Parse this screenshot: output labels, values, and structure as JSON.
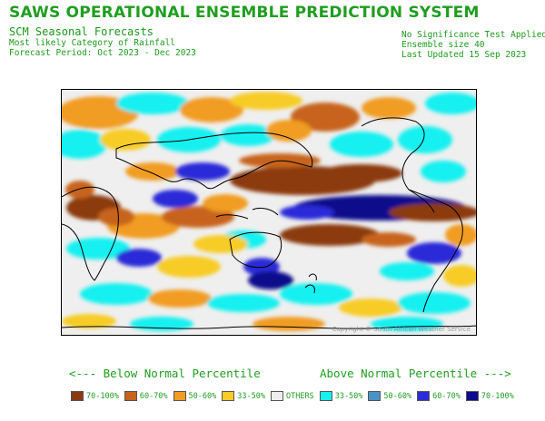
{
  "header": {
    "title": "SAWS OPERATIONAL ENSEMBLE PREDICTION SYSTEM",
    "subtitle": "SCM Seasonal Forecasts",
    "line1": "Most likely Category of Rainfall",
    "line2": "Forecast Period: Oct 2023 - Dec 2023",
    "right1": "No Significance Test Applied",
    "right2": "Ensemble size 40",
    "right3": "Last Updated 15 Sep 2023"
  },
  "map": {
    "copyright": "Copyright © South African Weather Service"
  },
  "legend": {
    "below_heading": "<--- Below Normal Percentile",
    "above_heading": "Above Normal Percentile --->",
    "items": [
      {
        "label": "70-100%",
        "color": "#8b3a0f"
      },
      {
        "label": "60-70%",
        "color": "#c7631c"
      },
      {
        "label": "50-60%",
        "color": "#f19c22"
      },
      {
        "label": "33-50%",
        "color": "#f7cc26"
      },
      {
        "label": "OTHERS",
        "color": "#eeeeee"
      },
      {
        "label": "33-50%",
        "color": "#19f0f0"
      },
      {
        "label": "50-60%",
        "color": "#4a93c7"
      },
      {
        "label": "60-70%",
        "color": "#2b2bd8"
      },
      {
        "label": "70-100%",
        "color": "#0b0b8c"
      }
    ]
  }
}
